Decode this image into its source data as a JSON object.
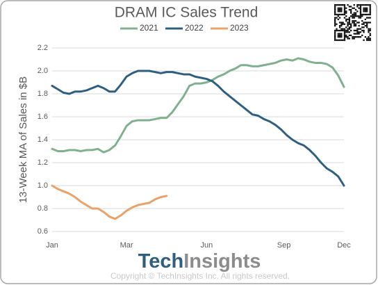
{
  "chart_data": {
    "type": "line",
    "title": "DRAM IC Sales Trend",
    "y_label": "13-Week MA of Sales in $B",
    "x": [
      1,
      2,
      3,
      4,
      5,
      6,
      7,
      8,
      9,
      10,
      11,
      12,
      13,
      14,
      15,
      16,
      17,
      18,
      19,
      20,
      21,
      22,
      23,
      24,
      25,
      26,
      27,
      28,
      29,
      30,
      31,
      32,
      33,
      34,
      35,
      36,
      37,
      38,
      39,
      40,
      41,
      42,
      43,
      44,
      45,
      46,
      47,
      48,
      49,
      50,
      51,
      52
    ],
    "xlim": [
      1,
      52
    ],
    "xticks": [
      {
        "value": 1,
        "label": "Jan"
      },
      {
        "value": 14,
        "label": "Mar"
      },
      {
        "value": 28,
        "label": "Jun"
      },
      {
        "value": 41.5,
        "label": "Sep"
      },
      {
        "value": 52,
        "label": "Dec"
      }
    ],
    "ylim": [
      0.6,
      2.2
    ],
    "yticks": [
      0.6,
      0.8,
      {
        "value": 1.0,
        "label": "1.0"
      },
      1.2,
      1.4,
      1.6,
      1.8,
      {
        "value": 2.0,
        "label": "2.0"
      },
      2.2
    ],
    "grid": true,
    "series": [
      {
        "name": "2021",
        "color": "#7fb08f",
        "values": [
          1.32,
          1.3,
          1.3,
          1.31,
          1.31,
          1.3,
          1.31,
          1.31,
          1.32,
          1.29,
          1.31,
          1.35,
          1.43,
          1.52,
          1.56,
          1.57,
          1.57,
          1.57,
          1.58,
          1.59,
          1.59,
          1.64,
          1.71,
          1.78,
          1.87,
          1.89,
          1.89,
          1.9,
          1.92,
          1.95,
          1.97,
          2.0,
          2.02,
          2.05,
          2.05,
          2.04,
          2.04,
          2.05,
          2.06,
          2.07,
          2.09,
          2.1,
          2.09,
          2.11,
          2.1,
          2.08,
          2.07,
          2.07,
          2.06,
          2.03,
          1.96,
          1.86
        ]
      },
      {
        "name": "2022",
        "color": "#2f5f80",
        "values": [
          1.87,
          1.84,
          1.81,
          1.8,
          1.82,
          1.82,
          1.83,
          1.85,
          1.87,
          1.85,
          1.82,
          1.82,
          1.88,
          1.95,
          1.98,
          2.0,
          2.0,
          2.0,
          1.99,
          1.98,
          1.99,
          1.99,
          1.98,
          1.97,
          1.97,
          1.95,
          1.94,
          1.93,
          1.91,
          1.87,
          1.82,
          1.78,
          1.74,
          1.7,
          1.66,
          1.62,
          1.61,
          1.58,
          1.56,
          1.53,
          1.49,
          1.44,
          1.4,
          1.37,
          1.35,
          1.31,
          1.26,
          1.2,
          1.15,
          1.12,
          1.08,
          1.0
        ]
      },
      {
        "name": "2023",
        "color": "#e8a26a",
        "values": [
          1.0,
          0.97,
          0.95,
          0.93,
          0.9,
          0.86,
          0.83,
          0.8,
          0.8,
          0.77,
          0.73,
          0.71,
          0.74,
          0.78,
          0.81,
          0.83,
          0.84,
          0.85,
          0.88,
          0.9,
          0.91,
          null,
          null,
          null,
          null,
          null,
          null,
          null,
          null,
          null,
          null,
          null,
          null,
          null,
          null,
          null,
          null,
          null,
          null,
          null,
          null,
          null,
          null,
          null,
          null,
          null,
          null,
          null,
          null,
          null,
          null,
          null
        ]
      }
    ]
  },
  "footer": {
    "logo_first": "Tech",
    "logo_second": "Insights",
    "copyright": "Copyright © TechInsights Inc.  All rights reserved."
  }
}
